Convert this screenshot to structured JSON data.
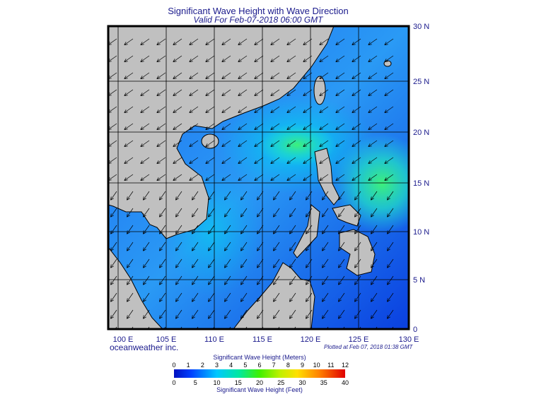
{
  "header": {
    "title": "Significant Wave Height with Wave Direction",
    "subtitle": "Valid For Feb-07-2018 06:00 GMT"
  },
  "map": {
    "lat_labels": [
      "30 N",
      "25 N",
      "20 N",
      "15 N",
      "10 N",
      "5 N",
      "0"
    ],
    "lon_labels": [
      "100 E",
      "105 E",
      "110 E",
      "115 E",
      "120 E",
      "125 E",
      "130 E"
    ]
  },
  "footer": {
    "credit": "oceanweather inc.",
    "plotted": "Plotted at Feb 07, 2018 01:38 GMT"
  },
  "colorbar": {
    "meters_title": "Significant Wave Height (Meters)",
    "meters_ticks": [
      0,
      1,
      2,
      3,
      4,
      5,
      6,
      7,
      8,
      9,
      10,
      11,
      12
    ],
    "feet_ticks": [
      0,
      5,
      10,
      15,
      20,
      25,
      30,
      35,
      40
    ],
    "feet_title": "Significant Wave Height (Feet)"
  }
}
